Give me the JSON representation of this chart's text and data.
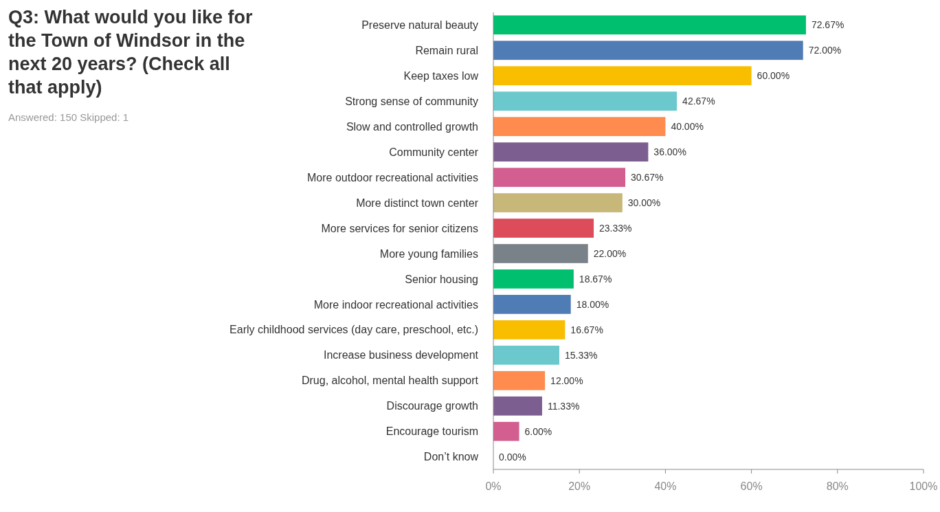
{
  "chart_data": {
    "type": "bar",
    "orientation": "horizontal",
    "title": "Q3: What would you like for the Town of Windsor in the next 20 years? (Check all that apply)",
    "subtitle": "Answered: 150 Skipped: 1",
    "categories": [
      "Preserve natural beauty",
      "Remain rural",
      "Keep taxes low",
      "Strong sense of community",
      "Slow and controlled growth",
      "Community center",
      "More outdoor recreational activities",
      "More distinct town center",
      "More services for senior citizens",
      "More young families",
      "Senior housing",
      "More indoor recreational activities",
      "Early childhood services (day care, preschool, etc.)",
      "Increase business development",
      "Drug, alcohol, mental health support",
      "Discourage growth",
      "Encourage tourism",
      "Don’t know"
    ],
    "values": [
      72.67,
      72,
      60,
      42.67,
      40,
      36,
      30.67,
      30,
      23.33,
      22,
      18.67,
      18,
      16.67,
      15.33,
      12,
      11.33,
      6,
      0
    ],
    "value_labels": [
      "72.67%",
      "72.00%",
      "60.00%",
      "42.67%",
      "40.00%",
      "36.00%",
      "30.67%",
      "30.00%",
      "23.33%",
      "22.00%",
      "18.67%",
      "18.00%",
      "16.67%",
      "15.33%",
      "12.00%",
      "11.33%",
      "6.00%",
      "0.00%"
    ],
    "colors": [
      "#00bf6f",
      "#507cb6",
      "#f9be00",
      "#6bc8cd",
      "#ff8b4f",
      "#7d5e90",
      "#d25f90",
      "#c7b879",
      "#dc4c5a",
      "#7a8289",
      "#00bf6f",
      "#507cb6",
      "#f9be00",
      "#6bc8cd",
      "#ff8b4f",
      "#7d5e90",
      "#d25f90",
      "#7a8289"
    ],
    "xlim": [
      0,
      100
    ],
    "xticks": [
      {
        "value": 0,
        "label": "0%"
      },
      {
        "value": 20,
        "label": "20%"
      },
      {
        "value": 40,
        "label": "40%"
      },
      {
        "value": 60,
        "label": "60%"
      },
      {
        "value": 80,
        "label": "80%"
      },
      {
        "value": 100,
        "label": "100%"
      }
    ],
    "grid": false
  }
}
